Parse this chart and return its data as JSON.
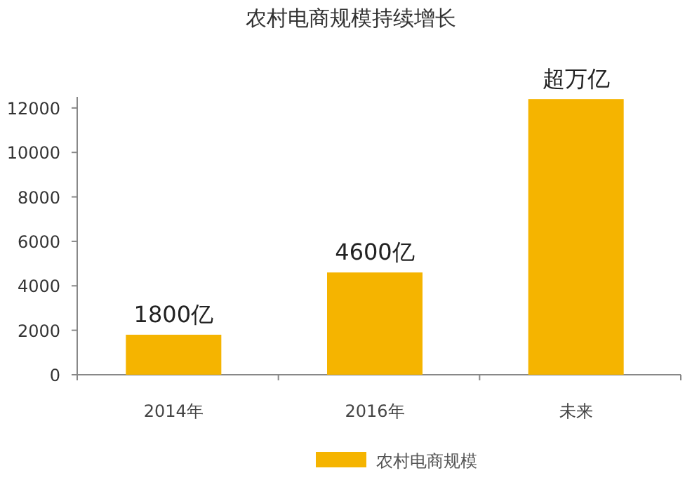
{
  "chart_data": {
    "type": "bar",
    "title": "农村电商规模持续增长",
    "categories": [
      "2014年",
      "2016年",
      "未来"
    ],
    "series": [
      {
        "name": "农村电商规模",
        "color": "#f5b400",
        "values": [
          1800,
          4600,
          12400
        ],
        "value_labels": [
          "1800亿",
          "4600亿",
          "超万亿"
        ]
      }
    ],
    "ylim": [
      0,
      12500
    ],
    "yticks": [
      0,
      2000,
      4000,
      6000,
      8000,
      10000,
      12000
    ],
    "legend": "bottom"
  }
}
